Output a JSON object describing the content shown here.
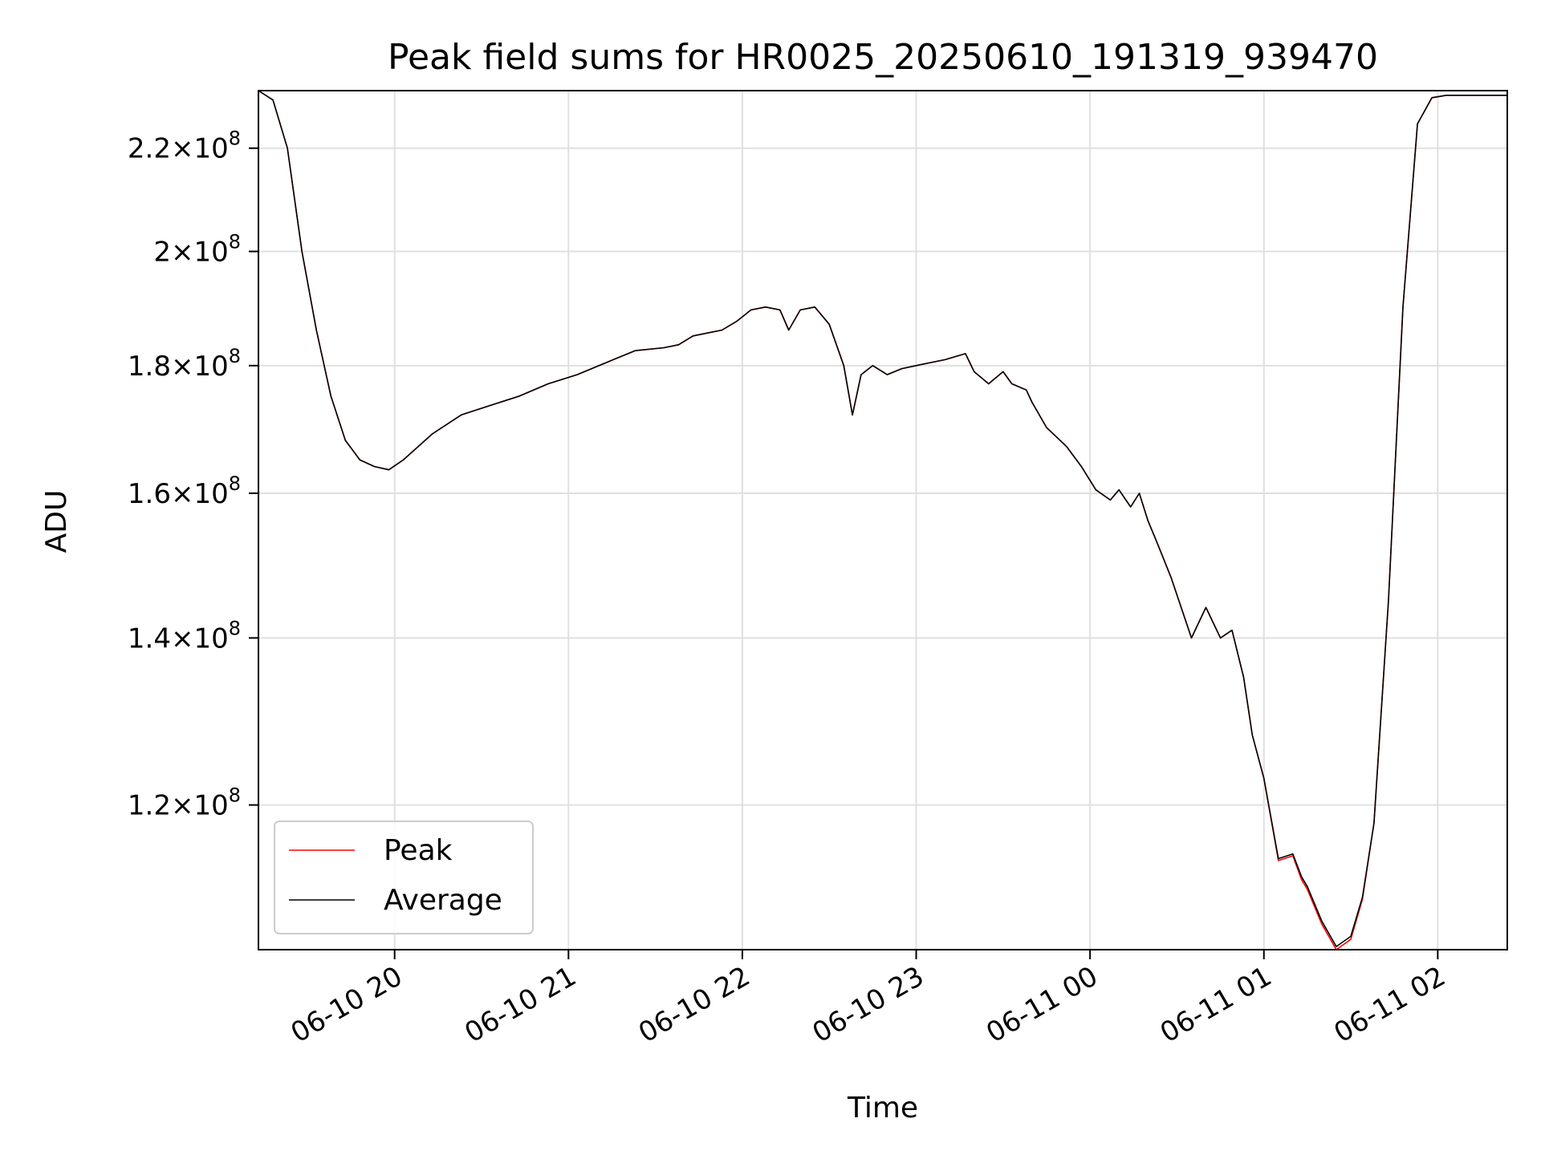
{
  "chart_data": {
    "type": "line",
    "title": "Peak field sums for HR0025_20250610_191319_939470",
    "xlabel": "Time",
    "ylabel": "ADU",
    "y_scale": "log",
    "grid": true,
    "legend_position": "lower-left",
    "xlim": [
      "2025-06-10 19:13",
      "2025-06-11 02:24"
    ],
    "ylim": [
      105000000,
      232000000
    ],
    "x_ticks": [
      {
        "value": "2025-06-10 20:00",
        "label": "06-10 20"
      },
      {
        "value": "2025-06-10 21:00",
        "label": "06-10 21"
      },
      {
        "value": "2025-06-10 22:00",
        "label": "06-10 22"
      },
      {
        "value": "2025-06-10 23:00",
        "label": "06-10 23"
      },
      {
        "value": "2025-06-11 00:00",
        "label": "06-11 00"
      },
      {
        "value": "2025-06-11 01:00",
        "label": "06-11 01"
      },
      {
        "value": "2025-06-11 02:00",
        "label": "06-11 02"
      }
    ],
    "y_ticks": [
      {
        "value": 120000000,
        "mant": "1.2",
        "exp": "8"
      },
      {
        "value": 140000000,
        "mant": "1.4",
        "exp": "8"
      },
      {
        "value": 160000000,
        "mant": "1.6",
        "exp": "8"
      },
      {
        "value": 180000000,
        "mant": "1.8",
        "exp": "8"
      },
      {
        "value": 200000000,
        "mant": "2",
        "exp": "8"
      },
      {
        "value": 220000000,
        "mant": "2.2",
        "exp": "8"
      }
    ],
    "colors": {
      "Peak": "#ff0000",
      "Average": "#000000",
      "grid": "#e0e0e0"
    },
    "series": [
      {
        "name": "Peak",
        "x": [
          "2025-06-10 19:13",
          "2025-06-10 19:18",
          "2025-06-10 19:23",
          "2025-06-10 19:28",
          "2025-06-10 19:33",
          "2025-06-10 19:38",
          "2025-06-10 19:43",
          "2025-06-10 19:48",
          "2025-06-10 19:53",
          "2025-06-10 19:58",
          "2025-06-10 20:03",
          "2025-06-10 20:13",
          "2025-06-10 20:23",
          "2025-06-10 20:33",
          "2025-06-10 20:43",
          "2025-06-10 20:53",
          "2025-06-10 21:03",
          "2025-06-10 21:13",
          "2025-06-10 21:23",
          "2025-06-10 21:33",
          "2025-06-10 21:38",
          "2025-06-10 21:43",
          "2025-06-10 21:53",
          "2025-06-10 21:58",
          "2025-06-10 22:03",
          "2025-06-10 22:08",
          "2025-06-10 22:13",
          "2025-06-10 22:16",
          "2025-06-10 22:20",
          "2025-06-10 22:25",
          "2025-06-10 22:30",
          "2025-06-10 22:35",
          "2025-06-10 22:38",
          "2025-06-10 22:41",
          "2025-06-10 22:45",
          "2025-06-10 22:50",
          "2025-06-10 22:55",
          "2025-06-10 23:00",
          "2025-06-10 23:10",
          "2025-06-10 23:17",
          "2025-06-10 23:20",
          "2025-06-10 23:25",
          "2025-06-10 23:30",
          "2025-06-10 23:33",
          "2025-06-10 23:38",
          "2025-06-10 23:40",
          "2025-06-10 23:45",
          "2025-06-10 23:52",
          "2025-06-10 23:57",
          "2025-06-11 00:02",
          "2025-06-11 00:07",
          "2025-06-11 00:10",
          "2025-06-11 00:14",
          "2025-06-11 00:17",
          "2025-06-11 00:20",
          "2025-06-11 00:23",
          "2025-06-11 00:28",
          "2025-06-11 00:35",
          "2025-06-11 00:40",
          "2025-06-11 00:45",
          "2025-06-11 00:49",
          "2025-06-11 00:53",
          "2025-06-11 00:56",
          "2025-06-11 01:00",
          "2025-06-11 01:05",
          "2025-06-11 01:10",
          "2025-06-11 01:13",
          "2025-06-11 01:15",
          "2025-06-11 01:20",
          "2025-06-11 01:25",
          "2025-06-11 01:30",
          "2025-06-11 01:34",
          "2025-06-11 01:38",
          "2025-06-11 01:43",
          "2025-06-11 01:48",
          "2025-06-11 01:53",
          "2025-06-11 01:58",
          "2025-06-11 02:03",
          "2025-06-11 02:08",
          "2025-06-11 02:13",
          "2025-06-11 02:24"
        ],
        "y": [
          232000000,
          230000000,
          220000000,
          200000000,
          186000000,
          175000000,
          168000000,
          165000000,
          164000000,
          163500000,
          165000000,
          169000000,
          172000000,
          173500000,
          175000000,
          177000000,
          178500000,
          180500000,
          182500000,
          183000000,
          183500000,
          185000000,
          186000000,
          187500000,
          189500000,
          190000000,
          189500000,
          186000000,
          189500000,
          190000000,
          187000000,
          180000000,
          172000000,
          178500000,
          180000000,
          178500000,
          179500000,
          180000000,
          181000000,
          182000000,
          179000000,
          177000000,
          179000000,
          177000000,
          176000000,
          174000000,
          170000000,
          167000000,
          164000000,
          160500000,
          159000000,
          160500000,
          158000000,
          160000000,
          156000000,
          153000000,
          148000000,
          140000000,
          144000000,
          140000000,
          141000000,
          135000000,
          128000000,
          123000000,
          114000000,
          114500000,
          112000000,
          111000000,
          107500000,
          105000000,
          106000000,
          110000000,
          118000000,
          145000000,
          190000000,
          225000000,
          230500000,
          231000000,
          231000000,
          231000000,
          231000000
        ]
      },
      {
        "name": "Average",
        "x": [
          "2025-06-10 19:13",
          "2025-06-10 19:18",
          "2025-06-10 19:23",
          "2025-06-10 19:28",
          "2025-06-10 19:33",
          "2025-06-10 19:38",
          "2025-06-10 19:43",
          "2025-06-10 19:48",
          "2025-06-10 19:53",
          "2025-06-10 19:58",
          "2025-06-10 20:03",
          "2025-06-10 20:13",
          "2025-06-10 20:23",
          "2025-06-10 20:33",
          "2025-06-10 20:43",
          "2025-06-10 20:53",
          "2025-06-10 21:03",
          "2025-06-10 21:13",
          "2025-06-10 21:23",
          "2025-06-10 21:33",
          "2025-06-10 21:38",
          "2025-06-10 21:43",
          "2025-06-10 21:53",
          "2025-06-10 21:58",
          "2025-06-10 22:03",
          "2025-06-10 22:08",
          "2025-06-10 22:13",
          "2025-06-10 22:16",
          "2025-06-10 22:20",
          "2025-06-10 22:25",
          "2025-06-10 22:30",
          "2025-06-10 22:35",
          "2025-06-10 22:38",
          "2025-06-10 22:41",
          "2025-06-10 22:45",
          "2025-06-10 22:50",
          "2025-06-10 22:55",
          "2025-06-10 23:00",
          "2025-06-10 23:10",
          "2025-06-10 23:17",
          "2025-06-10 23:20",
          "2025-06-10 23:25",
          "2025-06-10 23:30",
          "2025-06-10 23:33",
          "2025-06-10 23:38",
          "2025-06-10 23:40",
          "2025-06-10 23:45",
          "2025-06-10 23:52",
          "2025-06-10 23:57",
          "2025-06-11 00:02",
          "2025-06-11 00:07",
          "2025-06-11 00:10",
          "2025-06-11 00:14",
          "2025-06-11 00:17",
          "2025-06-11 00:20",
          "2025-06-11 00:23",
          "2025-06-11 00:28",
          "2025-06-11 00:35",
          "2025-06-11 00:40",
          "2025-06-11 00:45",
          "2025-06-11 00:49",
          "2025-06-11 00:53",
          "2025-06-11 00:56",
          "2025-06-11 01:00",
          "2025-06-11 01:05",
          "2025-06-11 01:10",
          "2025-06-11 01:13",
          "2025-06-11 01:15",
          "2025-06-11 01:20",
          "2025-06-11 01:25",
          "2025-06-11 01:30",
          "2025-06-11 01:34",
          "2025-06-11 01:38",
          "2025-06-11 01:43",
          "2025-06-11 01:48",
          "2025-06-11 01:53",
          "2025-06-11 01:58",
          "2025-06-11 02:03",
          "2025-06-11 02:08",
          "2025-06-11 02:13",
          "2025-06-11 02:24"
        ],
        "y": [
          232000000,
          230000000,
          220000000,
          200000000,
          186000000,
          175000000,
          168000000,
          165000000,
          164000000,
          163500000,
          165000000,
          169000000,
          172000000,
          173500000,
          175000000,
          177000000,
          178500000,
          180500000,
          182500000,
          183000000,
          183500000,
          185000000,
          186000000,
          187500000,
          189500000,
          190000000,
          189500000,
          186000000,
          189500000,
          190000000,
          187000000,
          180000000,
          172000000,
          178500000,
          180000000,
          178500000,
          179500000,
          180000000,
          181000000,
          182000000,
          179000000,
          177000000,
          179000000,
          177000000,
          176000000,
          174000000,
          170000000,
          167000000,
          164000000,
          160500000,
          159000000,
          160500000,
          158000000,
          160000000,
          156000000,
          153000000,
          148000000,
          140000000,
          144000000,
          140000000,
          141000000,
          135000000,
          128000000,
          123000000,
          114200000,
          114700000,
          112300000,
          111300000,
          107800000,
          105300000,
          106300000,
          110200000,
          118000000,
          145000000,
          190000000,
          225000000,
          230500000,
          231000000,
          231000000,
          231000000,
          231000000
        ]
      }
    ]
  }
}
